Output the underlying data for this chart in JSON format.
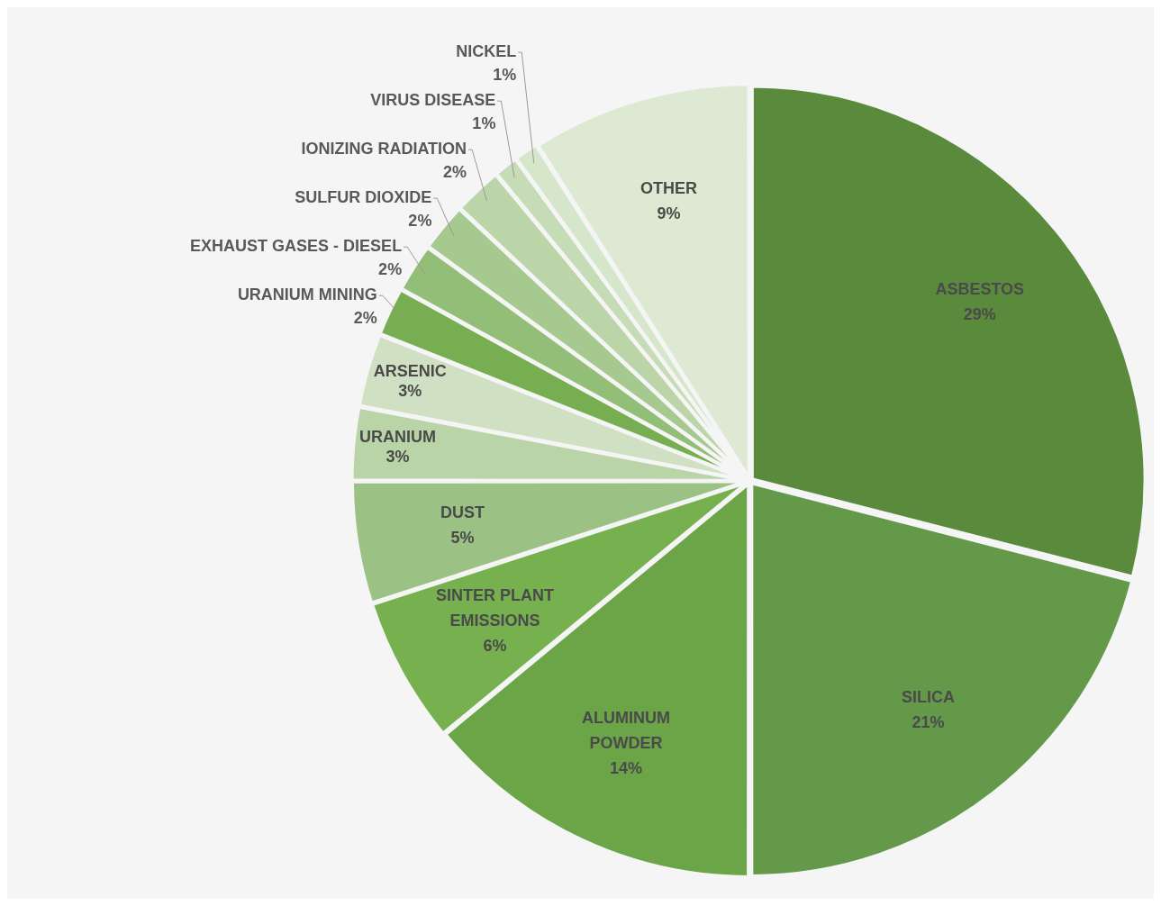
{
  "chart_data": {
    "type": "pie",
    "categories": [
      "ASBESTOS",
      "SILICA",
      "ALUMINUM POWDER",
      "SINTER PLANT EMISSIONS",
      "DUST",
      "URANIUM",
      "ARSENIC",
      "URANIUM MINING",
      "EXHAUST GASES - DIESEL",
      "SULFUR DIOXIDE",
      "IONIZING RADIATION",
      "VIRUS DISEASE",
      "NICKEL",
      "OTHER"
    ],
    "values": [
      29,
      21,
      14,
      6,
      5,
      3,
      3,
      2,
      2,
      2,
      2,
      1,
      1,
      9
    ],
    "value_labels": [
      "29%",
      "21%",
      "14%",
      "6%",
      "5%",
      "3%",
      "3%",
      "2%",
      "2%",
      "2%",
      "2%",
      "1%",
      "1%",
      "9%"
    ],
    "colors": [
      "#5a8a3c",
      "#64994a",
      "#6ba548",
      "#76b04f",
      "#9cc184",
      "#b9d4a6",
      "#d0e1c3",
      "#78ae52",
      "#93be78",
      "#a6c98f",
      "#bbd5a9",
      "#c6dcb6",
      "#d6e6cb",
      "#dde9d3"
    ],
    "legend": false
  }
}
